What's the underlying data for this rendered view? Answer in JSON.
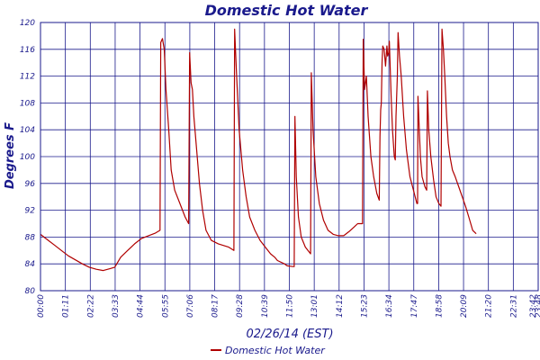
{
  "chart_data": {
    "type": "line",
    "title": "Domestic Hot Water",
    "xlabel": "02/26/14 (EST)",
    "ylabel": "Degrees F",
    "ylim": [
      80,
      120
    ],
    "yticks": [
      80,
      84,
      88,
      92,
      96,
      100,
      104,
      108,
      112,
      116,
      120
    ],
    "x_tick_labels": [
      "00:00",
      "01:11",
      "02:22",
      "03:33",
      "04:44",
      "05:55",
      "07:06",
      "08:17",
      "09:28",
      "10:39",
      "11:50",
      "13:01",
      "14:12",
      "15:23",
      "16:34",
      "17:47",
      "18:58",
      "20:09",
      "21:20",
      "22:31",
      "23:42",
      "23:48"
    ],
    "x_unit": "minutes since 00:00",
    "xlim": [
      0,
      1428
    ],
    "grid": true,
    "legend_position": "bottom-center",
    "series": [
      {
        "name": "Domestic Hot Water",
        "color": "#b00000",
        "points": [
          [
            0,
            88.4
          ],
          [
            20,
            87.6
          ],
          [
            40,
            86.8
          ],
          [
            60,
            86.0
          ],
          [
            80,
            85.2
          ],
          [
            100,
            84.6
          ],
          [
            120,
            84.0
          ],
          [
            140,
            83.5
          ],
          [
            160,
            83.2
          ],
          [
            180,
            83.0
          ],
          [
            200,
            83.3
          ],
          [
            213,
            83.5
          ],
          [
            230,
            85.0
          ],
          [
            250,
            86.0
          ],
          [
            270,
            87.0
          ],
          [
            290,
            87.8
          ],
          [
            310,
            88.2
          ],
          [
            330,
            88.6
          ],
          [
            343,
            89.0
          ],
          [
            345,
            117.0
          ],
          [
            350,
            117.6
          ],
          [
            355,
            116.0
          ],
          [
            360,
            110.0
          ],
          [
            368,
            104.0
          ],
          [
            375,
            98.0
          ],
          [
            385,
            95.0
          ],
          [
            400,
            93.0
          ],
          [
            415,
            91.0
          ],
          [
            425,
            90.0
          ],
          [
            428,
            115.5
          ],
          [
            432,
            111.0
          ],
          [
            436,
            110.0
          ],
          [
            440,
            106.0
          ],
          [
            448,
            101.0
          ],
          [
            456,
            96.0
          ],
          [
            465,
            92.0
          ],
          [
            475,
            89.0
          ],
          [
            490,
            87.5
          ],
          [
            510,
            87.0
          ],
          [
            540,
            86.5
          ],
          [
            555,
            86.0
          ],
          [
            557,
            119.0
          ],
          [
            562,
            113.0
          ],
          [
            570,
            104.0
          ],
          [
            580,
            98.0
          ],
          [
            590,
            94.0
          ],
          [
            600,
            91.0
          ],
          [
            615,
            89.0
          ],
          [
            630,
            87.5
          ],
          [
            645,
            86.5
          ],
          [
            660,
            85.5
          ],
          [
            672,
            85.0
          ],
          [
            680,
            84.5
          ],
          [
            700,
            84.0
          ],
          [
            708,
            83.7
          ],
          [
            725,
            83.6
          ],
          [
            728,
            83.6
          ],
          [
            730,
            106.0
          ],
          [
            734,
            97.0
          ],
          [
            740,
            91.0
          ],
          [
            748,
            88.0
          ],
          [
            760,
            86.5
          ],
          [
            775,
            85.5
          ],
          [
            777,
            112.5
          ],
          [
            782,
            104.0
          ],
          [
            790,
            97.0
          ],
          [
            800,
            93.0
          ],
          [
            812,
            90.5
          ],
          [
            825,
            89.0
          ],
          [
            840,
            88.4
          ],
          [
            855,
            88.2
          ],
          [
            870,
            88.2
          ],
          [
            885,
            88.8
          ],
          [
            900,
            89.5
          ],
          [
            910,
            90.0
          ],
          [
            924,
            90.0
          ],
          [
            926,
            117.5
          ],
          [
            930,
            110.0
          ],
          [
            935,
            112.0
          ],
          [
            940,
            106.0
          ],
          [
            948,
            100.0
          ],
          [
            956,
            97.0
          ],
          [
            965,
            94.5
          ],
          [
            972,
            93.5
          ],
          [
            974,
            103.0
          ],
          [
            976,
            107.0
          ],
          [
            978,
            108.0
          ],
          [
            980,
            114.0
          ],
          [
            982,
            116.5
          ],
          [
            986,
            116.0
          ],
          [
            990,
            113.5
          ],
          [
            994,
            116.5
          ],
          [
            996,
            115.0
          ],
          [
            999,
            115.5
          ],
          [
            1001,
            117.2
          ],
          [
            1006,
            109.0
          ],
          [
            1010,
            104.0
          ],
          [
            1015,
            100.0
          ],
          [
            1018,
            99.5
          ],
          [
            1020,
            106.0
          ],
          [
            1024,
            112.0
          ],
          [
            1026,
            118.5
          ],
          [
            1030,
            115.0
          ],
          [
            1035,
            112.0
          ],
          [
            1042,
            106.0
          ],
          [
            1050,
            101.0
          ],
          [
            1060,
            97.0
          ],
          [
            1070,
            95.0
          ],
          [
            1080,
            93.0
          ],
          [
            1082,
            93.0
          ],
          [
            1083,
            109.0
          ],
          [
            1086,
            105.0
          ],
          [
            1090,
            100.0
          ],
          [
            1095,
            97.0
          ],
          [
            1103,
            95.5
          ],
          [
            1108,
            95.0
          ],
          [
            1110,
            109.8
          ],
          [
            1114,
            104.0
          ],
          [
            1120,
            100.0
          ],
          [
            1128,
            96.5
          ],
          [
            1135,
            94.0
          ],
          [
            1143,
            93.0
          ],
          [
            1149,
            92.6
          ],
          [
            1152,
            119.0
          ],
          [
            1156,
            116.0
          ],
          [
            1160,
            112.0
          ],
          [
            1165,
            106.0
          ],
          [
            1170,
            102.0
          ],
          [
            1175,
            100.0
          ],
          [
            1182,
            98.0
          ],
          [
            1190,
            97.0
          ],
          [
            1200,
            95.5
          ],
          [
            1210,
            94.0
          ],
          [
            1220,
            92.5
          ],
          [
            1230,
            90.8
          ],
          [
            1240,
            89.0
          ],
          [
            1250,
            88.5
          ]
        ]
      }
    ]
  }
}
